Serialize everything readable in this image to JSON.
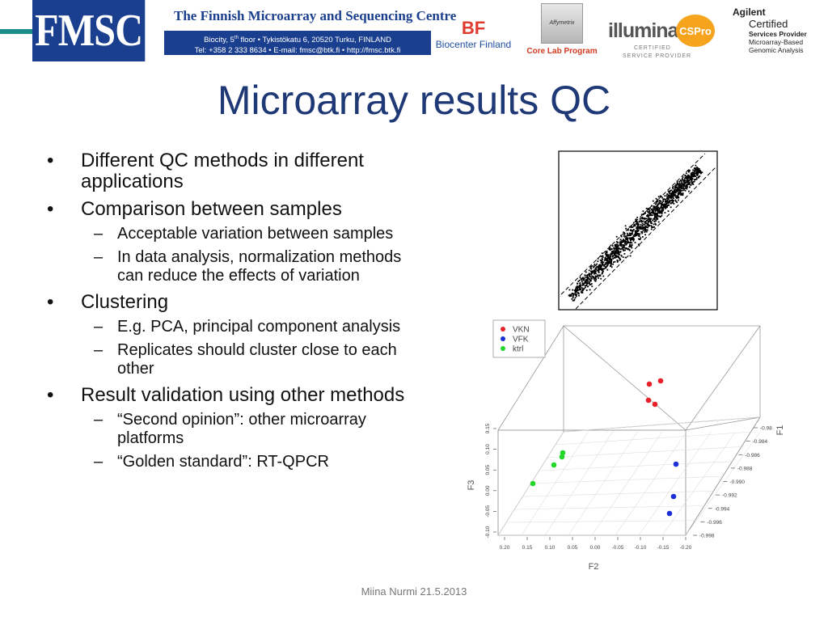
{
  "header": {
    "fmsc_logo": "FMSC",
    "centre_title": "The Finnish Microarray and Sequencing Centre",
    "address_line1_pre": "Biocity, 5",
    "address_line1_sup": "th",
    "address_line1_post": " floor • Tykistökatu 6, 20520 Turku, FINLAND",
    "address_line2": "Tel: +358 2 333 8634 • E-mail: fmsc@btk.fi • http://fmsc.btk.fi",
    "biocenter_mark": "BF",
    "biocenter_text": "Biocenter Finland",
    "affymetrix_text": "Core Lab Program",
    "affymetrix_box": "Affymetrix",
    "illumina_word": "illumina",
    "illumina_badge": "CSPro",
    "illumina_cert1": "CERTIFIED",
    "illumina_cert2": "SERVICE PROVIDER",
    "agilent_lines": [
      "Agilent",
      "Certified",
      "Services Provider",
      "Microarray-Based",
      "Genomic Analysis"
    ],
    "teal_color": "#1a8f8a",
    "brand_color": "#1b3f8f"
  },
  "title": "Microarray results QC",
  "bullets": {
    "b1": "Different QC methods in different applications",
    "b2": "Comparison between samples",
    "b2_sub1": "Acceptable variation between samples",
    "b2_sub2": "In data analysis, normalization methods can reduce the effects of variation",
    "b3": "Clustering",
    "b3_sub1": "E.g. PCA, principal component analysis",
    "b3_sub2": "Replicates should cluster close to each other",
    "b4": "Result validation using other methods",
    "b4_sub1": "“Second opinion”: other microarray platforms",
    "b4_sub2": "“Golden standard”: RT-QPCR"
  },
  "chart_data": [
    {
      "type": "scatter",
      "title": "",
      "xlabel": "",
      "ylabel": "",
      "grid": false,
      "description_shape": "dense diagonal band of points with two dashed parallel lines",
      "points_color": "#000000"
    },
    {
      "type": "scatter",
      "title": "",
      "xlabel": "F2",
      "ylabel": "F3",
      "zlabel": "F1",
      "legend": {
        "placement": "top-left",
        "entries": [
          {
            "name": "VKN",
            "color": "#e8202a"
          },
          {
            "name": "VFK",
            "color": "#1a2fd6"
          },
          {
            "name": "ktrl",
            "color": "#22d62a"
          }
        ]
      },
      "x_ticks": [
        "0.20",
        "0.15",
        "0.10",
        "0.05",
        "0.00",
        "-0.05",
        "-0.10",
        "-0.15",
        "-0.20"
      ],
      "y_ticks": [
        "-0.10",
        "-0.05",
        "0.00",
        "0.05",
        "0.10",
        "0.15"
      ],
      "z_ticks": [
        "-0.98",
        "-0.984",
        "-0.986",
        "-0.988",
        "-0.990",
        "-0.992",
        "-0.994",
        "-0.996",
        "-0.998"
      ],
      "series": [
        {
          "name": "VKN",
          "color": "#e8202a",
          "count": 4
        },
        {
          "name": "VFK",
          "color": "#1a2fd6",
          "count": 3
        },
        {
          "name": "ktrl",
          "color": "#22d62a",
          "count": 4
        }
      ]
    }
  ],
  "footer": "Miina Nurmi 21.5.2013"
}
